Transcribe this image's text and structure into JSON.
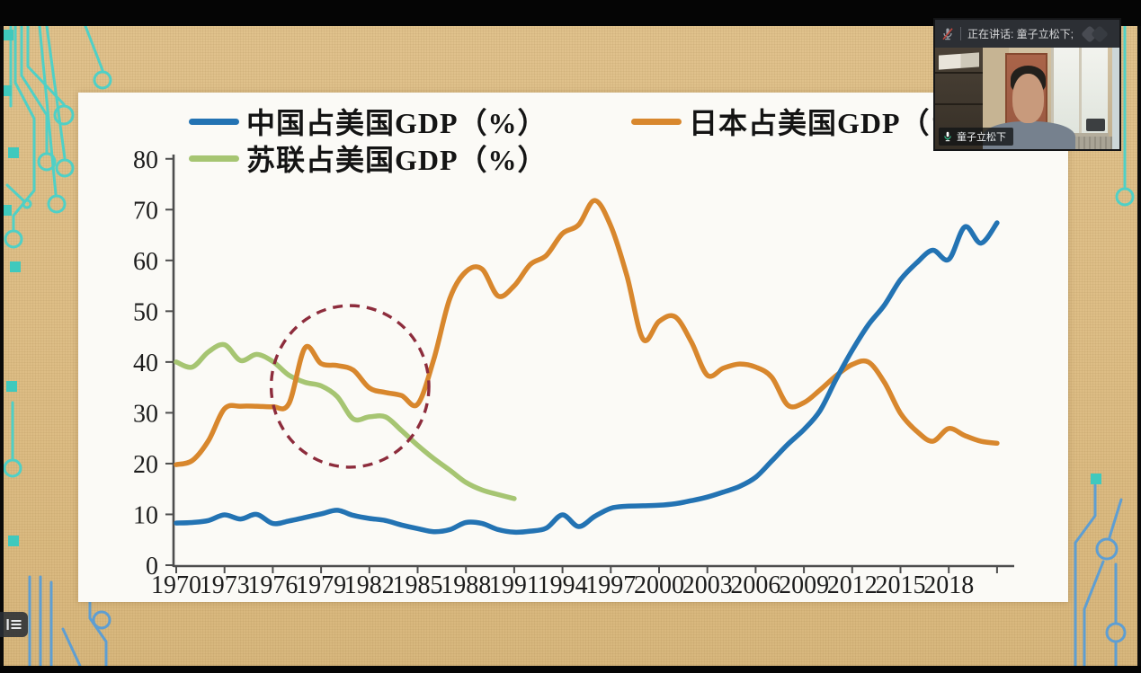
{
  "meeting": {
    "speaking_banner": "正在讲话: 童子立松下;",
    "participant_name": "童子立松下"
  },
  "slide": {
    "legend": [
      {
        "label": "中国占美国GDP（%）",
        "color": "#2373b3"
      },
      {
        "label": "日本占美国GDP（%）",
        "color": "#d8872d"
      },
      {
        "label": "苏联占美国GDP（%）",
        "color": "#a6c572"
      }
    ]
  },
  "chart_data": {
    "type": "line",
    "title": "",
    "xlabel": "",
    "ylabel": "",
    "ylim": [
      0,
      80
    ],
    "y_ticks": [
      0,
      10,
      20,
      30,
      40,
      50,
      60,
      70,
      80
    ],
    "x_tick_labels": [
      "1970",
      "1973",
      "1976",
      "1979",
      "1982",
      "1985",
      "1988",
      "1991",
      "1994",
      "1997",
      "2000",
      "2003",
      "2006",
      "2009",
      "2012",
      "2015",
      "2018"
    ],
    "x_tick_step_years": 3,
    "x_range": [
      1970,
      2021.5
    ],
    "grid": false,
    "legend_position": "top",
    "series": [
      {
        "name": "中国占美国GDP（%）",
        "color": "#2373b3",
        "start_year": 1970,
        "values": [
          8.3,
          8.4,
          8.8,
          9.9,
          9.1,
          10.0,
          8.2,
          8.7,
          9.4,
          10.1,
          10.8,
          9.8,
          9.2,
          8.8,
          7.9,
          7.2,
          6.6,
          7.0,
          8.4,
          8.2,
          7.0,
          6.5,
          6.7,
          7.3,
          9.9,
          7.6,
          9.6,
          11.2,
          11.6,
          11.7,
          11.8,
          12.1,
          12.7,
          13.4,
          14.4,
          15.5,
          17.3,
          20.5,
          23.8,
          26.7,
          30.4,
          36.6,
          42.3,
          47.3,
          51.2,
          56.2,
          59.5,
          62.0,
          60.2,
          66.6,
          63.4,
          67.4
        ]
      },
      {
        "name": "日本占美国GDP（%）",
        "color": "#d8872d",
        "start_year": 1970,
        "values": [
          19.8,
          20.6,
          24.5,
          30.8,
          31.3,
          31.3,
          31.2,
          31.8,
          42.8,
          39.7,
          39.3,
          38.4,
          34.9,
          34.0,
          33.4,
          31.7,
          40.5,
          52.5,
          57.8,
          58.3,
          53.0,
          55.0,
          59.2,
          61.0,
          65.3,
          67.0,
          71.8,
          66.8,
          57.0,
          44.5,
          48.0,
          48.9,
          44.0,
          37.4,
          38.8,
          39.6,
          39.0,
          37.0,
          31.5,
          32.0,
          34.5,
          37.3,
          39.5,
          40.0,
          36.0,
          29.9,
          26.4,
          24.4,
          26.9,
          25.5,
          24.4,
          24.0
        ]
      },
      {
        "name": "苏联占美国GDP（%）",
        "color": "#a6c572",
        "start_year": 1970,
        "values": [
          40.0,
          39.0,
          42.0,
          43.4,
          40.3,
          41.5,
          40.1,
          37.4,
          36.0,
          35.3,
          33.2,
          28.8,
          29.2,
          29.2,
          26.5,
          23.6,
          21.0,
          18.7,
          16.3,
          14.8,
          13.9,
          13.1
        ]
      }
    ],
    "annotation": {
      "type": "dashed-ellipse",
      "color": "#8d2c3c",
      "center_year": 1980.8,
      "center_value": 35.2,
      "radius_years": 4.9,
      "radius_units": 15.9
    }
  },
  "colors": {
    "axis": "#4d4d4d",
    "tick_label": "#1c1c1c",
    "panel_bg": "#fbfaf6",
    "background_tan": "#ddbd85",
    "circuit_teal": "#4fd0c6",
    "circuit_blue": "#5e9ed2",
    "square_teal": "#3fc9bd"
  }
}
